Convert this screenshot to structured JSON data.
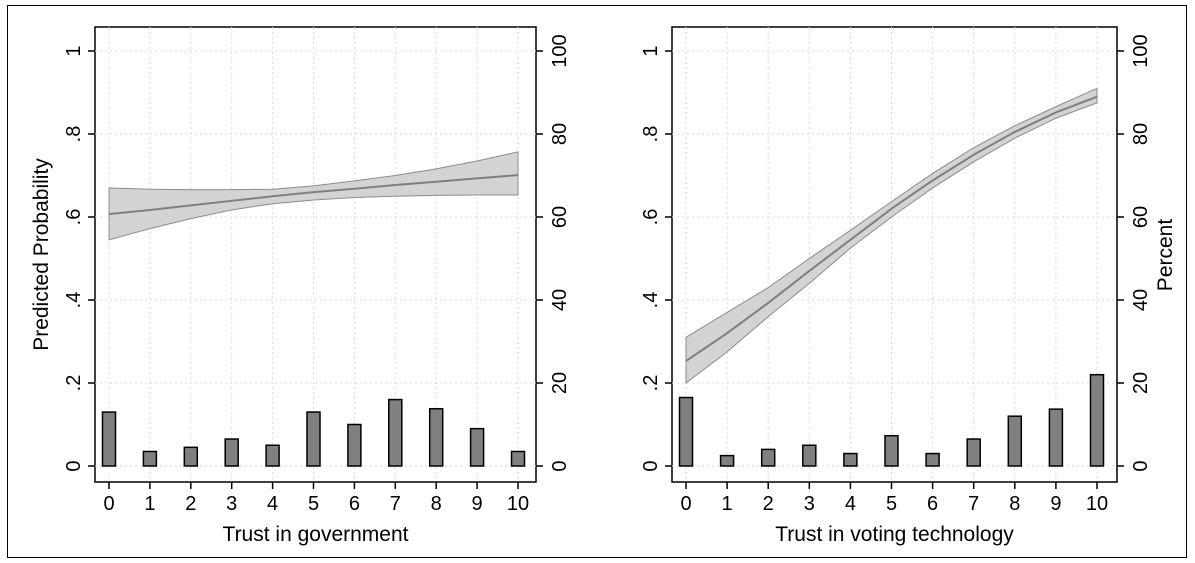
{
  "chart_data": [
    {
      "type": "line",
      "xlabel": "Trust in government",
      "ylabel": "Predicted Probability",
      "y2label": "",
      "xlim": [
        0,
        10
      ],
      "ylim": [
        0,
        1
      ],
      "y2lim": [
        0,
        100
      ],
      "x_ticks": [
        "0",
        "1",
        "2",
        "3",
        "4",
        "5",
        "6",
        "7",
        "8",
        "9",
        "10"
      ],
      "y_ticks": [
        "0",
        ".2",
        ".4",
        ".6",
        ".8",
        "1"
      ],
      "y2_ticks": [
        "0",
        "20",
        "40",
        "60",
        "80",
        "100"
      ],
      "grid": true,
      "colors": {
        "line": "#7f7f7f",
        "band": "#d3d3d3",
        "bar": "#808080"
      },
      "series": [
        {
          "type": "line",
          "x": [
            0,
            1,
            2,
            3,
            4,
            5,
            6,
            7,
            8,
            9,
            10
          ],
          "values": [
            0.607,
            0.617,
            0.628,
            0.639,
            0.65,
            0.66,
            0.668,
            0.677,
            0.685,
            0.693,
            0.701
          ]
        },
        {
          "type": "band",
          "x": [
            0,
            1,
            2,
            3,
            4,
            5,
            6,
            7,
            8,
            9,
            10
          ],
          "lower": [
            0.545,
            0.572,
            0.596,
            0.617,
            0.632,
            0.641,
            0.647,
            0.65,
            0.652,
            0.653,
            0.653
          ],
          "upper": [
            0.67,
            0.667,
            0.666,
            0.666,
            0.667,
            0.675,
            0.687,
            0.7,
            0.716,
            0.735,
            0.757
          ]
        },
        {
          "type": "bar",
          "axis": "y2",
          "x": [
            0,
            1,
            2,
            3,
            4,
            5,
            6,
            7,
            8,
            9,
            10
          ],
          "values": [
            13,
            3.5,
            4.5,
            6.5,
            5,
            13,
            10,
            16,
            13.8,
            9,
            3.5
          ]
        }
      ]
    },
    {
      "type": "line",
      "xlabel": "Trust in voting technology",
      "ylabel": "",
      "y2label": "Percent",
      "xlim": [
        0,
        10
      ],
      "ylim": [
        0,
        1
      ],
      "y2lim": [
        0,
        100
      ],
      "x_ticks": [
        "0",
        "1",
        "2",
        "3",
        "4",
        "5",
        "6",
        "7",
        "8",
        "9",
        "10"
      ],
      "y_ticks": [
        "0",
        ".2",
        ".4",
        ".6",
        ".8",
        "1"
      ],
      "y2_ticks": [
        "0",
        "20",
        "40",
        "60",
        "80",
        "100"
      ],
      "grid": true,
      "colors": {
        "line": "#7f7f7f",
        "band": "#d3d3d3",
        "bar": "#808080"
      },
      "series": [
        {
          "type": "line",
          "x": [
            0,
            1,
            2,
            3,
            4,
            5,
            6,
            7,
            8,
            9,
            10
          ],
          "values": [
            0.253,
            0.32,
            0.393,
            0.47,
            0.545,
            0.62,
            0.688,
            0.75,
            0.805,
            0.852,
            0.89
          ]
        },
        {
          "type": "band",
          "x": [
            0,
            1,
            2,
            3,
            4,
            5,
            6,
            7,
            8,
            9,
            10
          ],
          "lower": [
            0.2,
            0.275,
            0.36,
            0.44,
            0.525,
            0.6,
            0.67,
            0.733,
            0.79,
            0.838,
            0.875
          ],
          "upper": [
            0.31,
            0.37,
            0.43,
            0.5,
            0.568,
            0.637,
            0.705,
            0.767,
            0.82,
            0.866,
            0.91
          ]
        },
        {
          "type": "bar",
          "axis": "y2",
          "x": [
            0,
            1,
            2,
            3,
            4,
            5,
            6,
            7,
            8,
            9,
            10
          ],
          "values": [
            16.5,
            2.5,
            4,
            5,
            3,
            7.3,
            3,
            6.5,
            12,
            13.7,
            22
          ]
        }
      ]
    }
  ]
}
